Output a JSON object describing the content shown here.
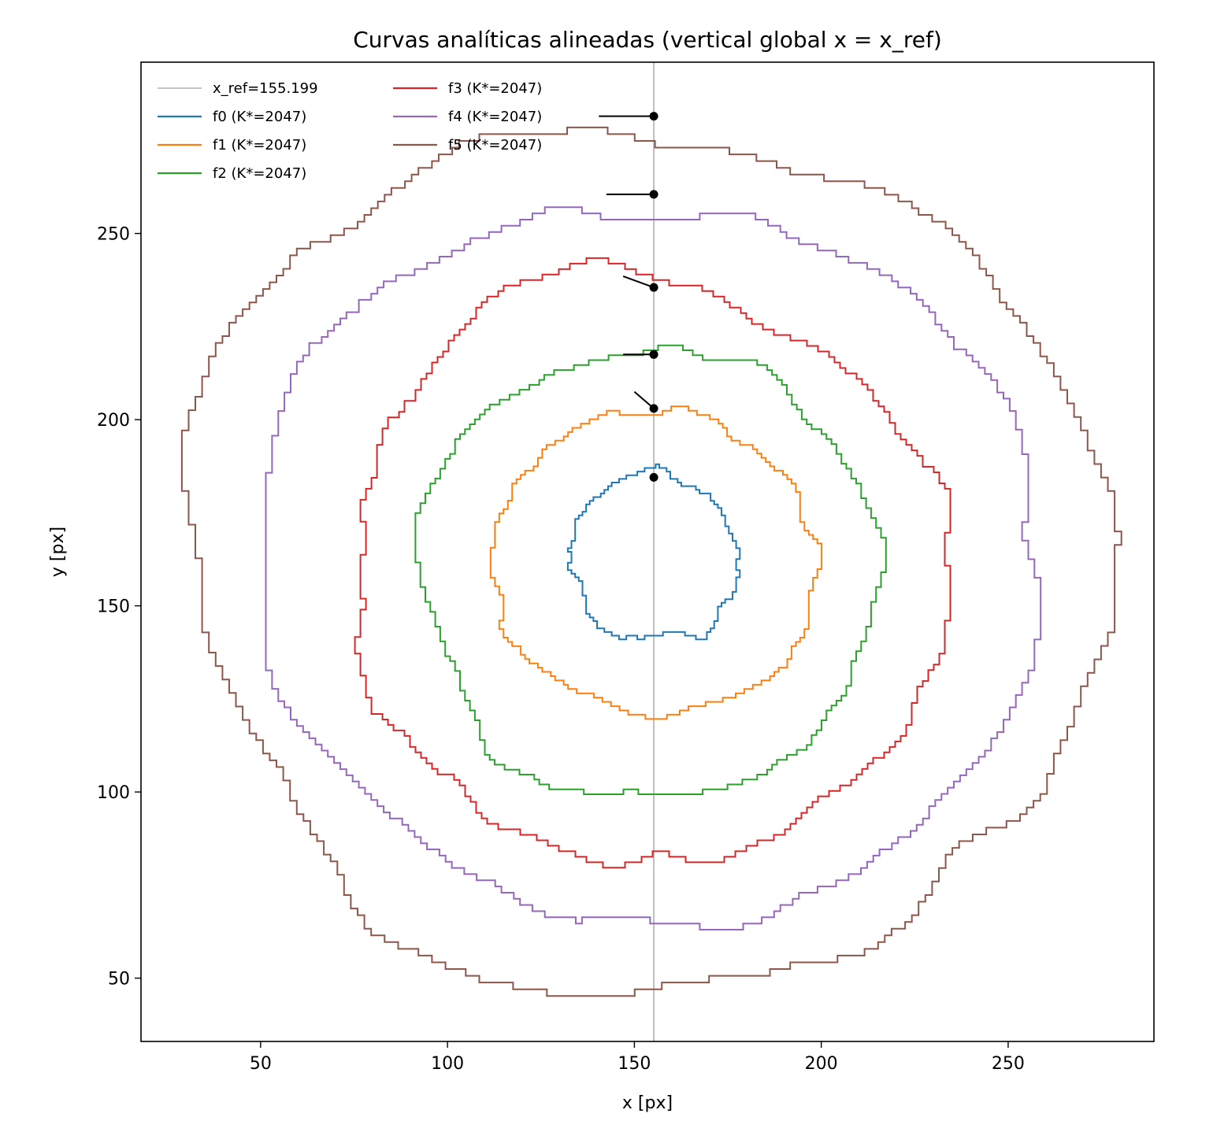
{
  "chart_data": {
    "type": "line",
    "title": "Curvas analíticas alineadas (vertical global x = x_ref)",
    "xlabel": "x [px]",
    "ylabel": "y [px]",
    "xlim": [
      18,
      289
    ],
    "ylim": [
      33,
      296
    ],
    "xticks": [
      50,
      100,
      150,
      200,
      250
    ],
    "yticks": [
      50,
      100,
      150,
      200,
      250
    ],
    "grid": false,
    "legend_position": "top-left",
    "x_ref": 155.199,
    "reference_line": {
      "label": "x_ref=155.199",
      "x": 155.199,
      "color": "#b0b0b0"
    },
    "series": [
      {
        "name": "f0 (K*=2047)",
        "color": "#1f77b4",
        "center": [
          155.3,
          163.0
        ],
        "rx": 21.5,
        "ry": 23.5,
        "tilt": 0.1,
        "jitter": 1.4,
        "seed": 11,
        "marker": [
          155.2,
          184.5
        ],
        "tangent": [
          155.2,
          184.5,
          154.7,
          184.5
        ]
      },
      {
        "name": "f1 (K*=2047)",
        "color": "#ff7f0e",
        "center": [
          155.5,
          161.5
        ],
        "rx": 42.0,
        "ry": 42.0,
        "tilt": 0.0,
        "jitter": 1.8,
        "seed": 23,
        "marker": [
          155.2,
          203.0
        ],
        "tangent": [
          155.2,
          203.0,
          150.0,
          207.5
        ]
      },
      {
        "name": "f2 (K*=2047)",
        "color": "#2ca02c",
        "center": [
          154.0,
          158.5
        ],
        "rx": 63.0,
        "ry": 59.0,
        "tilt": 0.0,
        "jitter": 2.2,
        "seed": 37,
        "marker": [
          155.2,
          217.5
        ],
        "tangent": [
          155.2,
          217.5,
          147.0,
          217.5
        ]
      },
      {
        "name": "f3 (K*=2047)",
        "color": "#d62728",
        "center": [
          153.5,
          159.5
        ],
        "rx": 81.0,
        "ry": 77.0,
        "tilt": 0.0,
        "jitter": 2.8,
        "seed": 53,
        "marker": [
          155.2,
          235.5
        ],
        "tangent": [
          155.2,
          235.5,
          147.0,
          238.5
        ]
      },
      {
        "name": "f4 (K*=2047)",
        "color": "#9467bd",
        "center": [
          154.0,
          161.5
        ],
        "rx": 103.0,
        "ry": 98.0,
        "tilt": 0.0,
        "jitter": 3.2,
        "seed": 71,
        "marker": [
          155.2,
          260.5
        ],
        "tangent": [
          155.2,
          260.5,
          142.5,
          260.5
        ]
      },
      {
        "name": "f5 (K*=2047)",
        "color": "#8c564b",
        "center": [
          153.0,
          162.5
        ],
        "rx": 121.0,
        "ry": 118.0,
        "tilt": 0.0,
        "jitter": 3.6,
        "seed": 97,
        "marker": [
          155.2,
          281.5
        ],
        "tangent": [
          155.2,
          281.5,
          140.5,
          281.5
        ]
      }
    ]
  }
}
